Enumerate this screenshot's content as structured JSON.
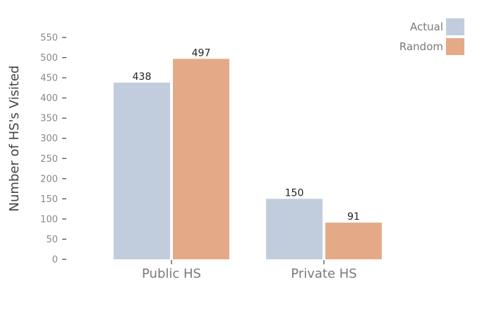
{
  "chart_data": {
    "type": "bar",
    "categories": [
      "Public HS",
      "Private HS"
    ],
    "series": [
      {
        "name": "Actual",
        "values": [
          438,
          150
        ],
        "color": "#c1cddd"
      },
      {
        "name": "Random",
        "values": [
          497,
          91
        ],
        "color": "#e4aa87"
      }
    ],
    "ylabel": "Number of HS's Visited",
    "xlabel": "",
    "ylim": [
      0,
      550
    ],
    "yticks": [
      0,
      50,
      100,
      150,
      200,
      250,
      300,
      350,
      400,
      450,
      500,
      550
    ],
    "legend_position": "top-right",
    "grid": false
  }
}
